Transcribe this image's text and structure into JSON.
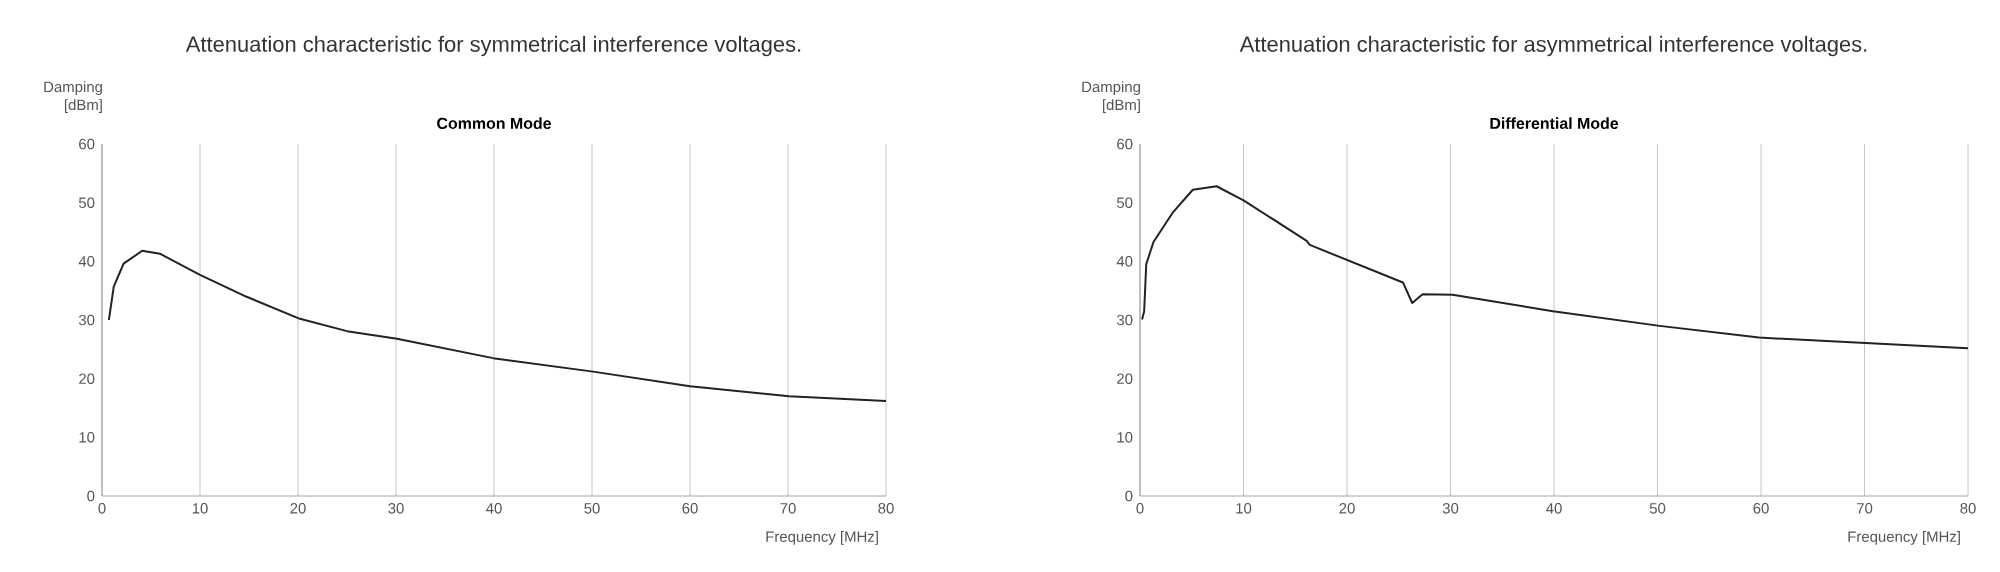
{
  "chart_data": [
    {
      "type": "line",
      "title": "Attenuation characteristic for symmetrical interference voltages.",
      "subtitle": "Common Mode",
      "xlabel": "Frequency [MHz]",
      "ylabel": "Damping [dBm]",
      "xlim": [
        0,
        80
      ],
      "ylim": [
        0,
        60
      ],
      "xticks": [
        0,
        10,
        20,
        30,
        40,
        50,
        60,
        70,
        80
      ],
      "yticks": [
        0,
        10,
        20,
        30,
        40,
        50,
        60
      ],
      "grid": "x",
      "marker": "none",
      "line_style": "solid",
      "series": [
        {
          "color": "#222222",
          "x": [
            0.7,
            1.2,
            2.2,
            4.1,
            5.9,
            10,
            14.7,
            20.2,
            25,
            30.1,
            39.9,
            50.1,
            60,
            70.1,
            80
          ],
          "values": [
            30.0,
            35.7,
            39.6,
            41.8,
            41.3,
            37.7,
            34.0,
            30.2,
            28.1,
            26.8,
            23.5,
            21.2,
            18.7,
            17.0,
            16.2
          ]
        }
      ]
    },
    {
      "type": "line",
      "title": "Attenuation characteristic for asymmetrical interference voltages.",
      "subtitle": "Differential Mode",
      "xlabel": "Frequency [MHz]",
      "ylabel": "Damping [dBm]",
      "xlim": [
        0,
        80
      ],
      "ylim": [
        0,
        60
      ],
      "xticks": [
        0,
        10,
        20,
        30,
        40,
        50,
        60,
        70,
        80
      ],
      "yticks": [
        0,
        10,
        20,
        30,
        40,
        50,
        60
      ],
      "grid": "x",
      "marker": "none",
      "line_style": "solid",
      "series": [
        {
          "color": "#222222",
          "x": [
            0.2,
            0.4,
            0.6,
            1.3,
            3.2,
            5.1,
            7.4,
            10,
            16.1,
            16.4,
            25.4,
            26.3,
            27.3,
            30.2,
            39.9,
            50.2,
            59.8,
            70.1,
            80
          ],
          "values": [
            30.1,
            31.5,
            39.5,
            43.3,
            48.4,
            52.2,
            52.8,
            50.4,
            43.5,
            42.8,
            36.4,
            32.9,
            34.4,
            34.3,
            31.5,
            29.0,
            27.0,
            26.1,
            25.2
          ]
        }
      ]
    }
  ]
}
